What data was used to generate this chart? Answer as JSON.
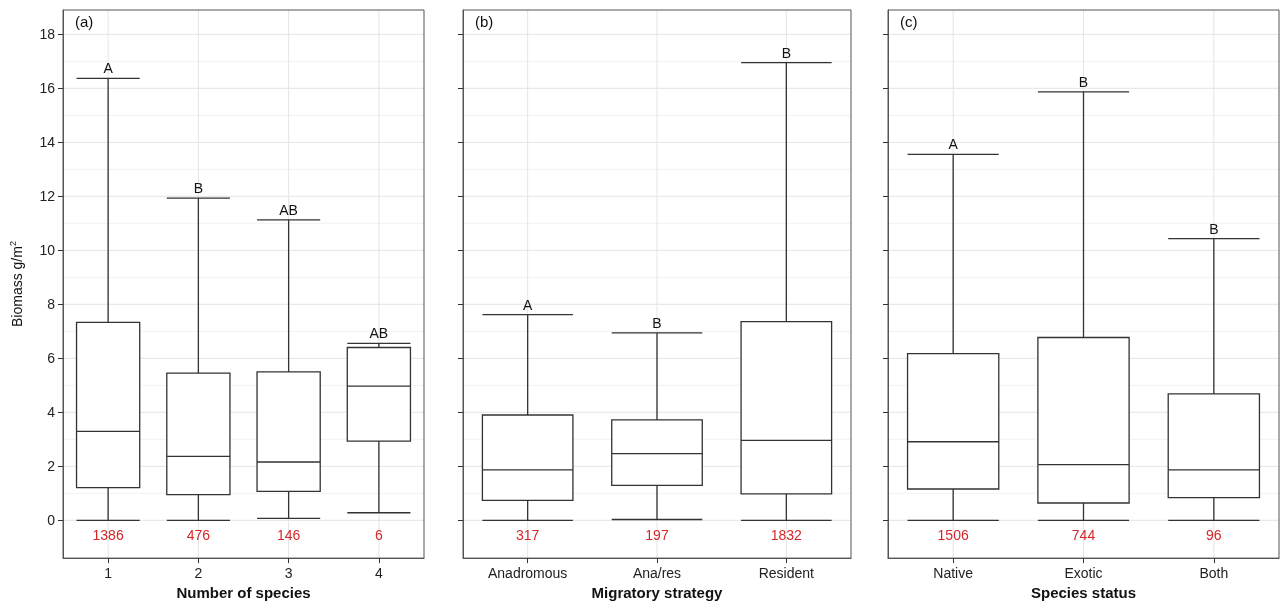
{
  "chart_data": [
    {
      "type": "box",
      "xlabel": "Number of species",
      "ylabel": "Biomass g/m$^{2}$",
      "categories": [
        "1",
        "2",
        "3",
        "4"
      ],
      "boxes": [
        {
          "low": 0,
          "q1": 1.21,
          "median": 3.29,
          "q3": 7.33,
          "high": 16.37
        },
        {
          "low": 0,
          "q1": 0.95,
          "median": 2.37,
          "q3": 5.45,
          "high": 11.93
        },
        {
          "low": 0.07,
          "q1": 1.07,
          "median": 2.16,
          "q3": 5.5,
          "high": 11.13
        },
        {
          "low": 0.28,
          "q1": 2.93,
          "median": 4.97,
          "q3": 6.4,
          "high": 6.55
        }
      ],
      "ylim": [
        -1.4,
        18.9
      ],
      "yticks": [
        0,
        2,
        4,
        6,
        8,
        10,
        12,
        14,
        16,
        18
      ],
      "grid": true,
      "annotations": [
        "(a)",
        {
          "text": "A",
          "x": "1",
          "y": 16.37
        },
        {
          "text": "B",
          "x": "2",
          "y": 11.93
        },
        {
          "text": "AB",
          "x": "3",
          "y": 11.13
        },
        {
          "text": "AB",
          "x": "4",
          "y": 6.55
        },
        "1386",
        "476",
        "146",
        "6"
      ]
    },
    {
      "type": "box",
      "xlabel": "Migratory strategy",
      "categories": [
        "Anadromous",
        "Ana/res",
        "Resident"
      ],
      "boxes": [
        {
          "low": 0,
          "q1": 0.74,
          "median": 1.87,
          "q3": 3.9,
          "high": 7.62
        },
        {
          "low": 0.03,
          "q1": 1.29,
          "median": 2.47,
          "q3": 3.72,
          "high": 6.94
        },
        {
          "low": 0,
          "q1": 0.98,
          "median": 2.96,
          "q3": 7.36,
          "high": 16.95
        }
      ],
      "ylim": [
        -1.4,
        18.9
      ],
      "yticks": [
        0,
        2,
        4,
        6,
        8,
        10,
        12,
        14,
        16,
        18
      ],
      "grid": true,
      "tick_labels": "x",
      "annotations": [
        "(b)",
        {
          "text": "A",
          "x": "Anadromous",
          "y": 7.62
        },
        {
          "text": "B",
          "x": "Ana/res",
          "y": 6.94
        },
        {
          "text": "B",
          "x": "Resident",
          "y": 16.95
        },
        "317",
        "197",
        "1832"
      ]
    },
    {
      "type": "box",
      "xlabel": "Species status",
      "categories": [
        "Native",
        "Exotic",
        "Both"
      ],
      "boxes": [
        {
          "low": 0,
          "q1": 1.16,
          "median": 2.91,
          "q3": 6.17,
          "high": 13.55
        },
        {
          "low": 0,
          "q1": 0.64,
          "median": 2.06,
          "q3": 6.77,
          "high": 15.87
        },
        {
          "low": 0,
          "q1": 0.84,
          "median": 1.87,
          "q3": 4.68,
          "high": 10.43
        }
      ],
      "ylim": [
        -1.4,
        18.9
      ],
      "yticks": [
        0,
        2,
        4,
        6,
        8,
        10,
        12,
        14,
        16,
        18
      ],
      "grid": true,
      "tick_labels": "x",
      "annotations": [
        "(c)",
        {
          "text": "A",
          "x": "Native",
          "y": 13.55
        },
        {
          "text": "B",
          "x": "Exotic",
          "y": 15.87
        },
        {
          "text": "B",
          "x": "Both",
          "y": 10.43
        },
        "1506",
        "744",
        "96"
      ]
    }
  ]
}
